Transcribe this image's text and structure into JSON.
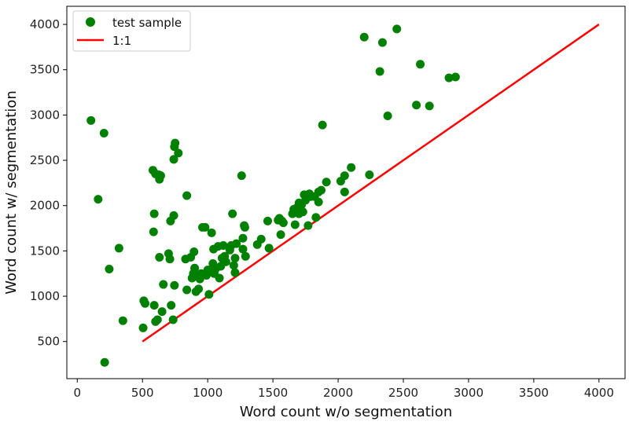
{
  "chart_data": {
    "type": "scatter",
    "xlabel": "Word count w/o segmentation",
    "ylabel": "Word count w/ segmentation",
    "xlim": [
      -80,
      4200
    ],
    "ylim": [
      90,
      4200
    ],
    "x_ticks": [
      0,
      500,
      1000,
      1500,
      2000,
      2500,
      3000,
      3500,
      4000
    ],
    "y_ticks": [
      500,
      1000,
      1500,
      2000,
      2500,
      3000,
      3500,
      4000
    ],
    "x_tick_labels": [
      "0",
      "500",
      "1000",
      "1500",
      "2000",
      "2500",
      "3000",
      "3500",
      "4000"
    ],
    "y_tick_labels": [
      "500",
      "1000",
      "1500",
      "2000",
      "2500",
      "3000",
      "3500",
      "4000"
    ],
    "grid": false,
    "legend_position": "top-left",
    "series": [
      {
        "name": "test sample",
        "kind": "scatter",
        "color": "#008000",
        "points": [
          [
            105,
            2940
          ],
          [
            205,
            2800
          ],
          [
            160,
            2070
          ],
          [
            245,
            1300
          ],
          [
            320,
            1530
          ],
          [
            350,
            730
          ],
          [
            210,
            270
          ],
          [
            505,
            650
          ],
          [
            510,
            950
          ],
          [
            520,
            920
          ],
          [
            580,
            2390
          ],
          [
            600,
            2350
          ],
          [
            625,
            2340
          ],
          [
            640,
            2330
          ],
          [
            630,
            2290
          ],
          [
            590,
            1910
          ],
          [
            585,
            1710
          ],
          [
            590,
            900
          ],
          [
            600,
            720
          ],
          [
            615,
            740
          ],
          [
            630,
            1430
          ],
          [
            650,
            830
          ],
          [
            660,
            1130
          ],
          [
            700,
            1470
          ],
          [
            710,
            1410
          ],
          [
            715,
            1830
          ],
          [
            720,
            900
          ],
          [
            735,
            740
          ],
          [
            740,
            2510
          ],
          [
            745,
            2650
          ],
          [
            750,
            2690
          ],
          [
            740,
            1890
          ],
          [
            745,
            1120
          ],
          [
            775,
            2580
          ],
          [
            830,
            1410
          ],
          [
            840,
            2110
          ],
          [
            840,
            1070
          ],
          [
            870,
            1430
          ],
          [
            880,
            1200
          ],
          [
            890,
            1250
          ],
          [
            895,
            1490
          ],
          [
            900,
            1310
          ],
          [
            910,
            1050
          ],
          [
            930,
            1080
          ],
          [
            940,
            1190
          ],
          [
            950,
            1250
          ],
          [
            960,
            1760
          ],
          [
            980,
            1760
          ],
          [
            990,
            1230
          ],
          [
            1000,
            1290
          ],
          [
            1010,
            1020
          ],
          [
            1030,
            1700
          ],
          [
            1040,
            1360
          ],
          [
            1045,
            1520
          ],
          [
            1050,
            1250
          ],
          [
            1060,
            1300
          ],
          [
            1080,
            1550
          ],
          [
            1090,
            1200
          ],
          [
            1100,
            1330
          ],
          [
            1110,
            1420
          ],
          [
            1120,
            1560
          ],
          [
            1130,
            1440
          ],
          [
            1140,
            1380
          ],
          [
            1170,
            1510
          ],
          [
            1180,
            1560
          ],
          [
            1190,
            1910
          ],
          [
            1200,
            1340
          ],
          [
            1210,
            1420
          ],
          [
            1210,
            1260
          ],
          [
            1220,
            1580
          ],
          [
            1260,
            2330
          ],
          [
            1270,
            1520
          ],
          [
            1270,
            1640
          ],
          [
            1280,
            1780
          ],
          [
            1285,
            1760
          ],
          [
            1290,
            1440
          ],
          [
            1380,
            1570
          ],
          [
            1410,
            1630
          ],
          [
            1460,
            1830
          ],
          [
            1470,
            1530
          ],
          [
            1540,
            1840
          ],
          [
            1550,
            1860
          ],
          [
            1560,
            1680
          ],
          [
            1570,
            1830
          ],
          [
            1580,
            1810
          ],
          [
            1650,
            1910
          ],
          [
            1660,
            1960
          ],
          [
            1670,
            1790
          ],
          [
            1680,
            1970
          ],
          [
            1700,
            1910
          ],
          [
            1700,
            2030
          ],
          [
            1710,
            1960
          ],
          [
            1720,
            2010
          ],
          [
            1730,
            1930
          ],
          [
            1740,
            2120
          ],
          [
            1750,
            2060
          ],
          [
            1770,
            1780
          ],
          [
            1780,
            2130
          ],
          [
            1790,
            2100
          ],
          [
            1820,
            2100
          ],
          [
            1830,
            1870
          ],
          [
            1850,
            2040
          ],
          [
            1850,
            2150
          ],
          [
            1870,
            2170
          ],
          [
            1880,
            2890
          ],
          [
            1910,
            2260
          ],
          [
            2020,
            2270
          ],
          [
            2050,
            2330
          ],
          [
            2050,
            2150
          ],
          [
            2100,
            2420
          ],
          [
            2200,
            3860
          ],
          [
            2240,
            2340
          ],
          [
            2320,
            3480
          ],
          [
            2340,
            3800
          ],
          [
            2380,
            2990
          ],
          [
            2450,
            3950
          ],
          [
            2600,
            3110
          ],
          [
            2630,
            3560
          ],
          [
            2700,
            3100
          ],
          [
            2850,
            3410
          ],
          [
            2900,
            3420
          ]
        ]
      },
      {
        "name": "1:1",
        "kind": "line",
        "color": "#ff0000",
        "points": [
          [
            500,
            500
          ],
          [
            4000,
            4000
          ]
        ]
      }
    ]
  }
}
